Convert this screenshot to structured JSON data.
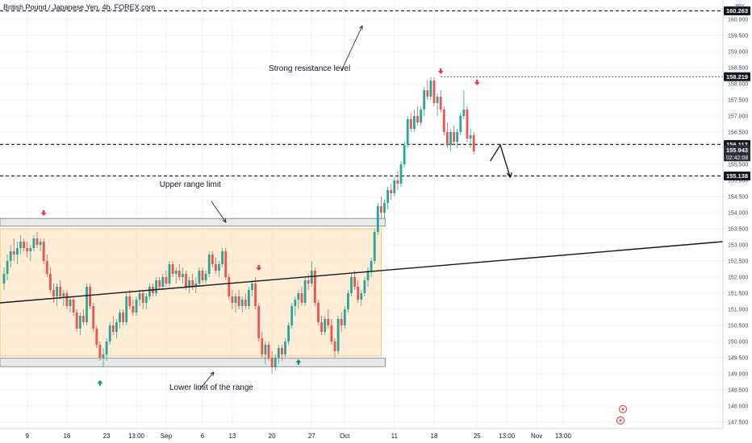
{
  "chart_data": {
    "type": "candlestick",
    "title": "British Pound / Japanese Yen, 4h, FOREX.com",
    "currency": "JPY",
    "ylim": [
      147.3,
      160.6
    ],
    "y_ticks": [
      147.5,
      148.0,
      148.5,
      149.0,
      149.5,
      150.0,
      150.5,
      151.0,
      151.5,
      152.0,
      152.5,
      153.0,
      153.5,
      154.0,
      154.5,
      155.0,
      155.5,
      156.0,
      156.5,
      157.0,
      157.5,
      158.0,
      158.5,
      159.0,
      159.5,
      160.0
    ],
    "y_tick_labels": [
      "147.500",
      "148.000",
      "148.500",
      "149.000",
      "149.500",
      "150.000",
      "150.500",
      "151.000",
      "151.500",
      "152.000",
      "152.500",
      "153.000",
      "153.500",
      "154.000",
      "154.500",
      "155.000",
      "155.500",
      "156.000",
      "156.500",
      "157.000",
      "157.500",
      "158.000",
      "158.500",
      "159.000",
      "159.500",
      "160.000"
    ],
    "x_ticks": [
      {
        "label": "9",
        "bar": 7
      },
      {
        "label": "16",
        "bar": 19
      },
      {
        "label": "23",
        "bar": 31
      },
      {
        "label": "13:00",
        "bar": 40
      },
      {
        "label": "Sep",
        "bar": 49
      },
      {
        "label": "6",
        "bar": 60
      },
      {
        "label": "13",
        "bar": 69
      },
      {
        "label": "20",
        "bar": 81
      },
      {
        "label": "27",
        "bar": 93
      },
      {
        "label": "Oct",
        "bar": 103
      },
      {
        "label": "11",
        "bar": 118
      },
      {
        "label": "18",
        "bar": 130
      },
      {
        "label": "25",
        "bar": 143
      },
      {
        "label": "13:00",
        "bar": 152
      },
      {
        "label": "Nov",
        "bar": 161
      },
      {
        "label": "13:00",
        "bar": 169
      }
    ],
    "candles_ohlc": [
      [
        151.8,
        152.3,
        151.6,
        152.1
      ],
      [
        152.1,
        152.7,
        151.9,
        152.5
      ],
      [
        152.5,
        153.0,
        152.3,
        152.8
      ],
      [
        152.8,
        153.2,
        152.5,
        152.7
      ],
      [
        152.7,
        153.1,
        152.4,
        152.9
      ],
      [
        152.9,
        153.3,
        152.7,
        153.1
      ],
      [
        153.1,
        153.2,
        152.8,
        152.9
      ],
      [
        152.9,
        153.1,
        152.6,
        152.8
      ],
      [
        152.8,
        153.0,
        152.5,
        152.9
      ],
      [
        152.9,
        153.3,
        152.8,
        153.2
      ],
      [
        153.2,
        153.4,
        152.9,
        153.0
      ],
      [
        153.0,
        153.2,
        152.8,
        153.1
      ],
      [
        153.1,
        153.2,
        152.4,
        152.5
      ],
      [
        152.5,
        152.7,
        152.0,
        152.1
      ],
      [
        152.1,
        152.3,
        151.5,
        151.6
      ],
      [
        151.6,
        151.8,
        151.2,
        151.4
      ],
      [
        151.4,
        151.8,
        151.1,
        151.7
      ],
      [
        151.7,
        151.9,
        151.3,
        151.4
      ],
      [
        151.4,
        151.6,
        151.1,
        151.5
      ],
      [
        151.5,
        151.6,
        151.0,
        151.1
      ],
      [
        151.1,
        151.4,
        150.9,
        151.3
      ],
      [
        151.3,
        151.4,
        150.8,
        150.9
      ],
      [
        150.9,
        151.0,
        150.3,
        150.4
      ],
      [
        150.4,
        150.9,
        150.2,
        150.8
      ],
      [
        150.8,
        151.0,
        150.5,
        150.6
      ],
      [
        150.6,
        151.8,
        150.5,
        151.7
      ],
      [
        151.7,
        151.8,
        151.0,
        151.1
      ],
      [
        151.1,
        151.2,
        150.3,
        150.4
      ],
      [
        150.4,
        150.5,
        149.8,
        149.9
      ],
      [
        149.9,
        150.0,
        149.4,
        149.5
      ],
      [
        149.5,
        149.8,
        149.2,
        149.6
      ],
      [
        149.6,
        150.1,
        149.4,
        150.0
      ],
      [
        150.0,
        150.6,
        149.9,
        150.5
      ],
      [
        150.5,
        150.8,
        150.2,
        150.3
      ],
      [
        150.3,
        150.7,
        150.1,
        150.6
      ],
      [
        150.6,
        151.0,
        150.4,
        150.9
      ],
      [
        150.9,
        151.0,
        150.5,
        150.6
      ],
      [
        150.6,
        151.5,
        150.5,
        151.4
      ],
      [
        151.4,
        151.6,
        151.0,
        151.1
      ],
      [
        151.1,
        151.3,
        150.8,
        150.9
      ],
      [
        150.9,
        151.4,
        150.8,
        151.3
      ],
      [
        151.3,
        151.6,
        151.1,
        151.5
      ],
      [
        151.5,
        151.6,
        151.0,
        151.2
      ],
      [
        151.2,
        151.5,
        151.0,
        151.4
      ],
      [
        151.4,
        151.8,
        151.3,
        151.7
      ],
      [
        151.7,
        151.8,
        151.4,
        151.5
      ],
      [
        151.5,
        152.0,
        151.4,
        151.9
      ],
      [
        151.9,
        152.0,
        151.6,
        151.7
      ],
      [
        151.7,
        152.1,
        151.6,
        152.0
      ],
      [
        152.0,
        152.2,
        151.7,
        151.8
      ],
      [
        151.8,
        152.5,
        151.7,
        152.4
      ],
      [
        152.4,
        152.5,
        152.0,
        152.1
      ],
      [
        152.1,
        152.3,
        151.8,
        152.2
      ],
      [
        152.2,
        152.4,
        151.9,
        152.0
      ],
      [
        152.0,
        152.3,
        151.8,
        152.1
      ],
      [
        152.1,
        152.2,
        151.6,
        151.7
      ],
      [
        151.7,
        152.0,
        151.5,
        151.9
      ],
      [
        151.9,
        152.1,
        151.6,
        151.7
      ],
      [
        151.7,
        152.0,
        151.5,
        151.8
      ],
      [
        151.8,
        152.3,
        151.7,
        152.2
      ],
      [
        152.2,
        152.3,
        151.8,
        151.9
      ],
      [
        151.9,
        152.2,
        151.8,
        152.1
      ],
      [
        152.1,
        152.8,
        152.0,
        152.7
      ],
      [
        152.7,
        152.8,
        152.3,
        152.4
      ],
      [
        152.4,
        152.6,
        152.1,
        152.2
      ],
      [
        152.2,
        152.5,
        152.0,
        152.4
      ],
      [
        152.4,
        152.9,
        152.3,
        152.8
      ],
      [
        152.8,
        152.9,
        151.9,
        152.0
      ],
      [
        152.0,
        152.1,
        151.3,
        151.4
      ],
      [
        151.4,
        151.6,
        151.0,
        151.2
      ],
      [
        151.2,
        151.5,
        150.9,
        151.4
      ],
      [
        151.4,
        151.6,
        151.0,
        151.1
      ],
      [
        151.1,
        151.4,
        150.9,
        151.3
      ],
      [
        151.3,
        151.5,
        151.0,
        151.1
      ],
      [
        151.1,
        151.7,
        151.0,
        151.6
      ],
      [
        151.6,
        151.9,
        151.4,
        151.8
      ],
      [
        151.8,
        152.0,
        151.0,
        151.1
      ],
      [
        151.1,
        151.2,
        150.0,
        150.1
      ],
      [
        150.1,
        150.3,
        149.5,
        149.6
      ],
      [
        149.6,
        150.0,
        149.3,
        149.9
      ],
      [
        149.9,
        150.0,
        149.4,
        149.5
      ],
      [
        149.5,
        149.7,
        149.0,
        149.2
      ],
      [
        149.2,
        149.6,
        149.1,
        149.5
      ],
      [
        149.5,
        149.9,
        149.3,
        149.8
      ],
      [
        149.8,
        149.9,
        149.4,
        149.6
      ],
      [
        149.6,
        150.1,
        149.5,
        150.0
      ],
      [
        150.0,
        150.6,
        149.9,
        150.5
      ],
      [
        150.5,
        151.2,
        150.4,
        151.1
      ],
      [
        151.1,
        151.4,
        150.8,
        151.3
      ],
      [
        151.3,
        151.6,
        151.0,
        151.5
      ],
      [
        151.5,
        151.7,
        151.1,
        151.2
      ],
      [
        151.2,
        152.0,
        151.1,
        151.9
      ],
      [
        151.9,
        152.1,
        151.6,
        151.8
      ],
      [
        151.8,
        152.5,
        151.7,
        152.2
      ],
      [
        152.2,
        152.3,
        151.1,
        151.2
      ],
      [
        151.2,
        151.3,
        150.5,
        150.6
      ],
      [
        150.6,
        150.8,
        150.2,
        150.3
      ],
      [
        150.3,
        150.8,
        150.2,
        150.7
      ],
      [
        150.7,
        151.0,
        150.4,
        150.5
      ],
      [
        150.5,
        150.7,
        149.9,
        150.0
      ],
      [
        150.0,
        150.1,
        149.5,
        149.7
      ],
      [
        149.7,
        150.8,
        149.6,
        150.7
      ],
      [
        150.7,
        150.9,
        150.3,
        150.5
      ],
      [
        150.5,
        151.1,
        150.4,
        151.0
      ],
      [
        151.0,
        151.6,
        150.9,
        151.5
      ],
      [
        151.5,
        152.1,
        151.4,
        152.0
      ],
      [
        152.0,
        152.2,
        151.6,
        151.7
      ],
      [
        151.7,
        151.9,
        151.2,
        151.3
      ],
      [
        151.3,
        151.6,
        151.1,
        151.5
      ],
      [
        151.5,
        152.0,
        151.4,
        151.9
      ],
      [
        151.9,
        152.3,
        151.7,
        152.2
      ],
      [
        152.2,
        152.6,
        152.0,
        152.5
      ],
      [
        152.5,
        153.5,
        152.4,
        153.4
      ],
      [
        153.4,
        154.3,
        153.3,
        154.2
      ],
      [
        154.2,
        154.5,
        153.8,
        154.0
      ],
      [
        154.0,
        154.4,
        153.8,
        154.3
      ],
      [
        154.3,
        154.8,
        154.1,
        154.7
      ],
      [
        154.7,
        154.9,
        154.4,
        154.6
      ],
      [
        154.6,
        155.1,
        154.5,
        155.0
      ],
      [
        155.0,
        155.3,
        154.7,
        154.9
      ],
      [
        154.9,
        155.6,
        154.8,
        155.5
      ],
      [
        155.5,
        156.2,
        155.4,
        156.1
      ],
      [
        156.1,
        157.0,
        156.0,
        156.9
      ],
      [
        156.9,
        157.1,
        156.5,
        156.6
      ],
      [
        156.6,
        157.2,
        156.5,
        157.0
      ],
      [
        157.0,
        157.3,
        156.7,
        156.8
      ],
      [
        156.8,
        157.3,
        156.7,
        157.2
      ],
      [
        157.2,
        157.9,
        157.0,
        157.8
      ],
      [
        157.8,
        158.1,
        157.5,
        157.6
      ],
      [
        157.6,
        158.2,
        157.5,
        158.1
      ],
      [
        158.1,
        158.2,
        157.3,
        157.4
      ],
      [
        157.4,
        157.7,
        157.0,
        157.6
      ],
      [
        157.6,
        157.8,
        157.1,
        157.2
      ],
      [
        157.2,
        157.3,
        156.4,
        156.5
      ],
      [
        156.5,
        156.8,
        156.0,
        156.1
      ],
      [
        156.1,
        156.6,
        155.9,
        156.5
      ],
      [
        156.5,
        156.7,
        156.1,
        156.2
      ],
      [
        156.2,
        156.6,
        156.0,
        156.5
      ],
      [
        156.5,
        157.1,
        156.4,
        157.0
      ],
      [
        157.0,
        157.8,
        156.9,
        157.2
      ],
      [
        157.2,
        157.3,
        156.2,
        156.3
      ],
      [
        156.3,
        156.6,
        156.0,
        156.4
      ],
      [
        156.4,
        156.5,
        155.8,
        155.9
      ]
    ],
    "horizontal_levels": [
      {
        "price": 160.263,
        "label": "160.263",
        "style": "dashed"
      },
      {
        "price": 158.219,
        "label": "158.219",
        "style": "dotted"
      },
      {
        "price": 156.117,
        "label": "156.117",
        "style": "dashed"
      },
      {
        "price": 155.138,
        "label": "155.138",
        "style": "dashed"
      }
    ],
    "current_price": {
      "label": "155.943",
      "countdown": "02:42:08",
      "price": 155.943
    },
    "range_zone": {
      "top": 153.5,
      "bottom": 149.55,
      "from_bar": 0,
      "to_bar": 114
    },
    "range_boxes": [
      {
        "top": 153.82,
        "bottom": 153.58,
        "from_bar": 0,
        "to_bar": 114
      },
      {
        "top": 149.48,
        "bottom": 149.22,
        "from_bar": 0,
        "to_bar": 114
      }
    ],
    "trendline": {
      "p1": {
        "bar": 0,
        "price": 151.2
      },
      "p2": {
        "bar": 183,
        "price": 153.1
      }
    },
    "annotations": [
      {
        "text": "Strong resistance level",
        "bar": 80,
        "price": 158.4
      },
      {
        "text": "Upper range limit",
        "bar": 47,
        "price": 154.8
      },
      {
        "text": "Lower limit of the range",
        "bar": 50,
        "price": 148.5
      }
    ],
    "markers": [
      {
        "type": "down-arrow",
        "bar": 12,
        "price": 154.0
      },
      {
        "type": "up-arrow",
        "bar": 29,
        "price": 148.7
      },
      {
        "type": "down-arrow",
        "bar": 77,
        "price": 152.3
      },
      {
        "type": "up-arrow",
        "bar": 89,
        "price": 149.35
      },
      {
        "type": "down-arrow",
        "bar": 132,
        "price": 158.4
      },
      {
        "type": "down-arrow",
        "bar": 143,
        "price": 158.05
      }
    ],
    "projection_path": [
      {
        "bar": 147,
        "price": 155.6
      },
      {
        "bar": 150,
        "price": 156.1
      },
      {
        "bar": 153,
        "price": 155.1
      }
    ]
  }
}
